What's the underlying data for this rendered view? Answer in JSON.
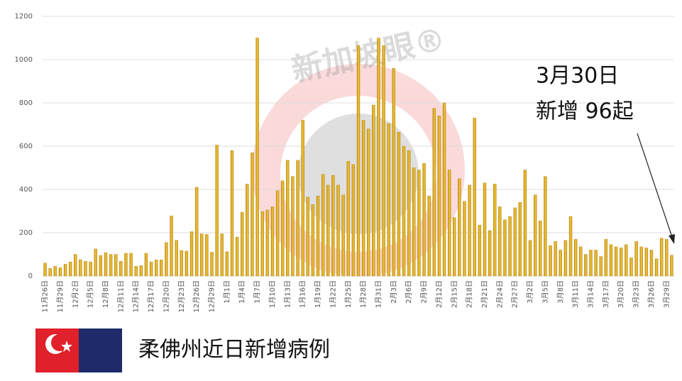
{
  "chart_data": {
    "type": "bar",
    "watermark": "新加坡眼®",
    "annotation": [
      "3月30日",
      "新增 96起"
    ],
    "footer_title": "柔佛州近日新增病例",
    "color": "#e6b422",
    "ylim": [
      0,
      1200
    ],
    "yticks": [
      0,
      200,
      400,
      600,
      800,
      1000,
      1200
    ],
    "grid": true,
    "categories": [
      "11月26日",
      null,
      null,
      "11月29日",
      null,
      null,
      "12月2日",
      null,
      null,
      "12月5日",
      null,
      null,
      "12月8日",
      null,
      null,
      "12月11日",
      null,
      null,
      "12月14日",
      null,
      null,
      "12月17日",
      null,
      null,
      "12月20日",
      null,
      null,
      "12月23日",
      null,
      null,
      "12月26日",
      null,
      null,
      "12月29日",
      null,
      null,
      "1月1日",
      null,
      null,
      "1月4日",
      null,
      null,
      "1月7日",
      null,
      null,
      "1月10日",
      null,
      null,
      "1月13日",
      null,
      null,
      "1月16日",
      null,
      null,
      "1月19日",
      null,
      null,
      "1月22日",
      null,
      null,
      "1月25日",
      null,
      null,
      "1月28日",
      null,
      null,
      "1月31日",
      null,
      null,
      "2月3日",
      null,
      null,
      "2月6日",
      null,
      null,
      "2月9日",
      null,
      null,
      "2月12日",
      null,
      null,
      "2月15日",
      null,
      null,
      "2月18日",
      null,
      null,
      "2月21日",
      null,
      null,
      "2月24日",
      null,
      null,
      "2月27日",
      null,
      null,
      "3月2日",
      null,
      null,
      "3月5日",
      null,
      null,
      "3月8日",
      null,
      null,
      "3月11日",
      null,
      null,
      "3月14日",
      null,
      null,
      "3月17日",
      null,
      null,
      "3月20日",
      null,
      null,
      "3月23日",
      null,
      null,
      "3月26日",
      null,
      null,
      "3月29日",
      null
    ],
    "values": [
      60,
      35,
      45,
      38,
      55,
      65,
      100,
      75,
      68,
      65,
      125,
      95,
      108,
      100,
      100,
      68,
      105,
      105,
      45,
      48,
      105,
      65,
      75,
      75,
      155,
      278,
      165,
      118,
      115,
      205,
      410,
      195,
      192,
      110,
      605,
      195,
      112,
      580,
      180,
      295,
      425,
      570,
      1100,
      298,
      305,
      320,
      395,
      440,
      535,
      460,
      535,
      720,
      365,
      330,
      370,
      470,
      420,
      465,
      420,
      375,
      530,
      515,
      1065,
      720,
      680,
      790,
      1100,
      1065,
      705,
      960,
      665,
      600,
      580,
      500,
      490,
      520,
      370,
      775,
      740,
      800,
      490,
      270,
      450,
      345,
      420,
      730,
      235,
      430,
      210,
      425,
      320,
      260,
      275,
      315,
      340,
      490,
      165,
      375,
      255,
      460,
      140,
      160,
      120,
      165,
      275,
      170,
      135,
      100,
      120,
      120,
      90,
      170,
      145,
      135,
      130,
      145,
      85,
      160,
      135,
      130,
      120,
      80,
      175,
      170,
      96
    ]
  }
}
